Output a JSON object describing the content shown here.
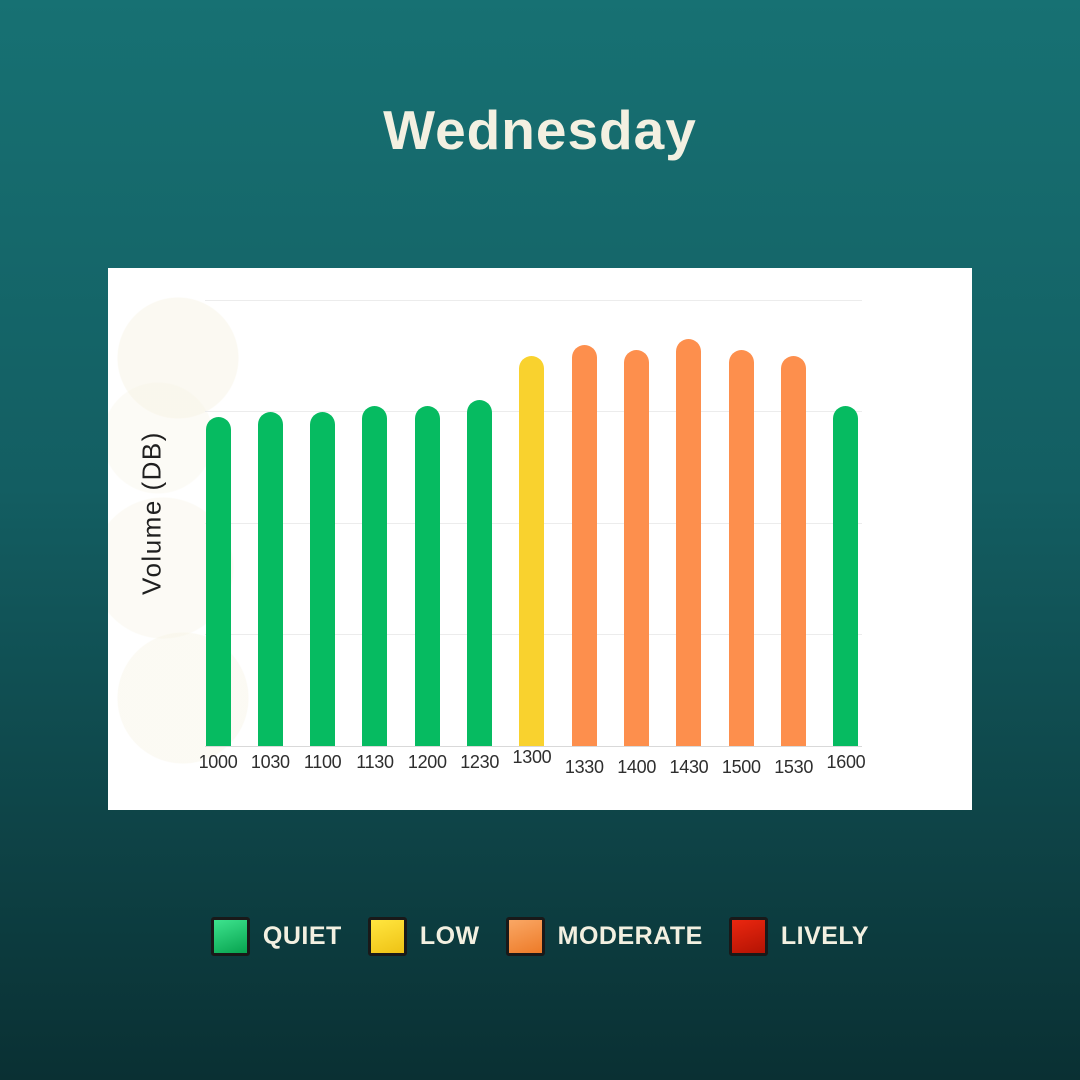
{
  "title": "Wednesday",
  "chart_data": {
    "type": "bar",
    "title": "Wednesday",
    "xlabel": "",
    "ylabel": "Volume (DB)",
    "categories": [
      "1000",
      "1030",
      "1100",
      "1130",
      "1200",
      "1230",
      "1300",
      "1330",
      "1400",
      "1430",
      "1500",
      "1530",
      "1600"
    ],
    "values": [
      59,
      60,
      60,
      61,
      61,
      62,
      70,
      72,
      71,
      73,
      71,
      70,
      61
    ],
    "levels": [
      "quiet",
      "quiet",
      "quiet",
      "quiet",
      "quiet",
      "quiet",
      "low",
      "moderate",
      "moderate",
      "moderate",
      "moderate",
      "moderate",
      "quiet"
    ],
    "ylim": [
      0,
      80
    ],
    "gridline_step": 20,
    "grid": true,
    "y_tick_labels_visible": false,
    "legend_position": "bottom"
  },
  "legend": {
    "items": [
      {
        "label": "QUIET",
        "level": "quiet"
      },
      {
        "label": "LOW",
        "level": "low"
      },
      {
        "label": "MODERATE",
        "level": "moderate"
      },
      {
        "label": "LIVELY",
        "level": "lively"
      }
    ]
  },
  "colors": {
    "background_top": "#177173",
    "background_mid": "#135e62",
    "background_bottom": "#0a3033",
    "card_background": "#ffffff",
    "title_text": "#f3f0e1",
    "legend_text": "#f3f0e1",
    "tick_text": "#2e2e2e",
    "ylabel_text": "#1f1f1f",
    "gridline": "#ececec",
    "axis_line": "#d9d9d9",
    "quiet": "#06bb61",
    "low": "#f9d22e",
    "moderate": "#fd8f4d",
    "lively": "#d21f0c",
    "quiet_light": "#3be08b",
    "quiet_dark": "#0aa652",
    "low_light": "#ffe43d",
    "low_dark": "#efc417",
    "moderate_light": "#f9a562",
    "moderate_dark": "#ee7d2b",
    "lively_light": "#e8260f",
    "lively_dark": "#b61404"
  }
}
